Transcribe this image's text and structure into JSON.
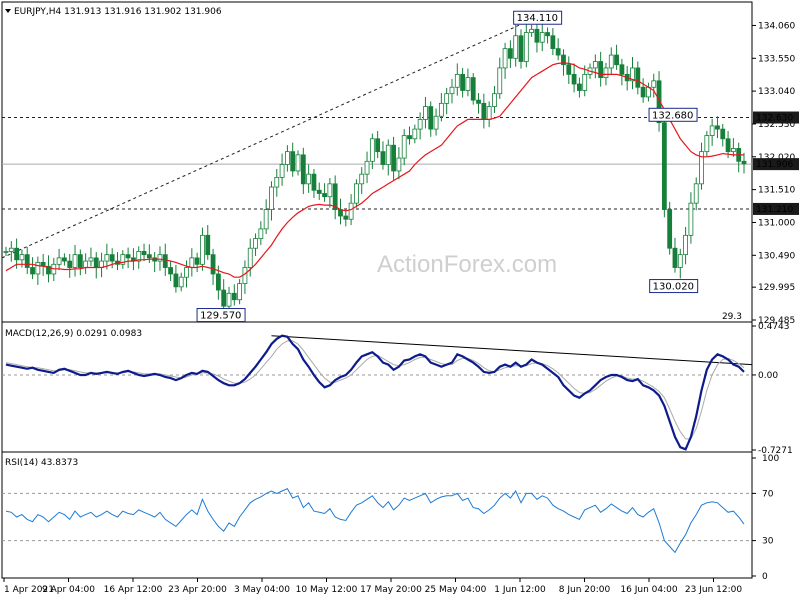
{
  "header": {
    "text": "EURJPY,H4  131.913 131.916 131.902 131.906"
  },
  "watermark": "ActionForex.com",
  "chart_data": [
    {
      "type": "candlestick",
      "title": "EURJPY,H4  131.913 131.916 131.902 131.906",
      "symbol": "EURJPY",
      "timeframe": "H4",
      "ohlc_last": {
        "open": 131.913,
        "high": 131.916,
        "low": 131.902,
        "close": 131.906
      },
      "ylim": [
        129.485,
        134.3
      ],
      "y_ticks": [
        "134.060",
        "133.550",
        "133.040",
        "132.530",
        "132.020",
        "131.510",
        "131.000",
        "130.490",
        "129.995",
        "129.485"
      ],
      "x_ticks": [
        "1 Apr 2021",
        "9 Apr 04:00",
        "16 Apr 12:00",
        "23 Apr 20:00",
        "3 May 04:00",
        "10 May 12:00",
        "17 May 20:00",
        "25 May 04:00",
        "1 Jun 12:00",
        "8 Jun 20:00",
        "16 Jun 04:00",
        "23 Jun 12:00"
      ],
      "close_series": [
        130.55,
        130.6,
        130.42,
        130.5,
        130.3,
        130.2,
        130.38,
        130.32,
        130.2,
        130.35,
        130.45,
        130.4,
        130.3,
        130.5,
        130.3,
        130.4,
        130.45,
        130.3,
        130.4,
        130.5,
        130.4,
        130.35,
        130.5,
        130.45,
        130.4,
        130.55,
        130.5,
        130.45,
        130.4,
        130.5,
        130.3,
        130.2,
        130.0,
        130.15,
        130.3,
        130.45,
        130.35,
        130.8,
        130.5,
        130.2,
        129.95,
        129.7,
        129.9,
        129.8,
        130.05,
        130.3,
        130.6,
        130.75,
        130.9,
        131.2,
        131.55,
        131.7,
        131.9,
        132.1,
        131.8,
        132.05,
        131.6,
        131.75,
        131.5,
        131.45,
        131.4,
        131.6,
        131.2,
        131.1,
        131.05,
        131.3,
        131.6,
        131.75,
        131.95,
        132.3,
        132.1,
        131.9,
        132.2,
        131.8,
        132.0,
        132.35,
        132.3,
        132.45,
        132.6,
        132.8,
        132.45,
        132.65,
        132.85,
        133.0,
        133.1,
        133.3,
        133.05,
        133.25,
        132.9,
        132.85,
        132.6,
        132.8,
        133.0,
        133.4,
        133.7,
        133.55,
        133.9,
        133.5,
        133.95,
        134.0,
        133.8,
        133.95,
        133.9,
        133.7,
        133.6,
        133.45,
        133.3,
        133.15,
        133.05,
        133.3,
        133.4,
        133.5,
        133.25,
        133.4,
        133.6,
        133.45,
        133.3,
        133.2,
        133.4,
        133.1,
        132.95,
        133.1,
        133.2,
        132.55,
        131.2,
        130.6,
        130.3,
        130.5,
        130.8,
        131.3,
        131.6,
        132.1,
        132.35,
        132.5,
        132.45,
        132.3,
        132.1,
        132.15,
        131.95,
        131.91
      ],
      "ma_series": [
        130.25,
        130.3,
        130.35,
        130.35,
        130.35,
        130.35,
        130.33,
        130.32,
        130.3,
        130.28,
        130.28,
        130.27,
        130.27,
        130.28,
        130.28,
        130.3,
        130.3,
        130.3,
        130.3,
        130.32,
        130.35,
        130.37,
        130.38,
        130.4,
        130.4,
        130.42,
        130.42,
        130.43,
        130.43,
        130.43,
        130.42,
        130.4,
        130.38,
        130.35,
        130.32,
        130.3,
        130.3,
        130.32,
        130.3,
        130.28,
        130.25,
        130.22,
        130.2,
        130.15,
        130.15,
        130.2,
        130.27,
        130.35,
        130.45,
        130.55,
        130.65,
        130.78,
        130.9,
        131.0,
        131.08,
        131.15,
        131.2,
        131.25,
        131.27,
        131.28,
        131.27,
        131.27,
        131.25,
        131.2,
        131.18,
        131.2,
        131.25,
        131.3,
        131.37,
        131.45,
        131.5,
        131.55,
        131.6,
        131.65,
        131.7,
        131.75,
        131.8,
        131.9,
        131.98,
        132.05,
        132.1,
        132.15,
        132.2,
        132.3,
        132.4,
        132.5,
        132.55,
        132.6,
        132.6,
        132.6,
        132.6,
        132.6,
        132.62,
        132.65,
        132.75,
        132.85,
        132.95,
        133.05,
        133.15,
        133.25,
        133.3,
        133.35,
        133.4,
        133.45,
        133.47,
        133.48,
        133.47,
        133.45,
        133.4,
        133.38,
        133.35,
        133.33,
        133.3,
        133.3,
        133.3,
        133.3,
        133.28,
        133.25,
        133.22,
        133.2,
        133.15,
        133.1,
        133.05,
        132.9,
        132.75,
        132.6,
        132.45,
        132.3,
        132.2,
        132.1,
        132.05,
        132.02,
        132.02,
        132.03,
        132.05,
        132.07,
        132.06,
        132.05,
        132.05,
        132.05
      ],
      "ma_color": "#e8151a",
      "candle_color": "#16803a",
      "annotations": [
        "134.110",
        "132.680",
        "130.020",
        "129.570"
      ],
      "levels": [
        "132.630",
        "131.906",
        "131.210"
      ],
      "level_colors": [
        "#ffffff",
        "#ffffff",
        "#ffffff"
      ],
      "level_fills": [
        "#1a1a1a",
        "#1a1a1a",
        "#1a1a1a"
      ],
      "side_note": "29.3"
    },
    {
      "type": "line",
      "title": "MACD(12,26,9) 0.0291 0.0983",
      "ylim": [
        -0.7271,
        0.4743
      ],
      "y_ticks": [
        "0.4743",
        "0.00",
        "-0.7271"
      ],
      "macd_color": "#0d1b8c",
      "signal_color": "#aaaaaa",
      "macd_series": [
        0.1,
        0.09,
        0.08,
        0.07,
        0.06,
        0.07,
        0.05,
        0.04,
        0.03,
        0.02,
        0.05,
        0.06,
        0.04,
        0.02,
        0.0,
        0.0,
        0.02,
        0.01,
        0.02,
        0.03,
        0.02,
        0.01,
        0.03,
        0.04,
        0.02,
        0.0,
        -0.01,
        0.0,
        0.01,
        0.0,
        -0.02,
        -0.03,
        -0.05,
        -0.03,
        0.0,
        0.02,
        0.01,
        0.04,
        0.03,
        -0.01,
        -0.05,
        -0.08,
        -0.1,
        -0.1,
        -0.08,
        -0.04,
        0.02,
        0.08,
        0.15,
        0.22,
        0.3,
        0.35,
        0.38,
        0.37,
        0.3,
        0.25,
        0.15,
        0.08,
        0.0,
        -0.07,
        -0.12,
        -0.1,
        -0.05,
        -0.02,
        0.0,
        0.05,
        0.12,
        0.18,
        0.2,
        0.22,
        0.18,
        0.12,
        0.1,
        0.05,
        0.08,
        0.14,
        0.15,
        0.18,
        0.2,
        0.18,
        0.12,
        0.1,
        0.08,
        0.1,
        0.12,
        0.2,
        0.18,
        0.15,
        0.12,
        0.08,
        0.03,
        0.02,
        0.03,
        0.08,
        0.1,
        0.08,
        0.12,
        0.08,
        0.1,
        0.15,
        0.12,
        0.1,
        0.06,
        0.02,
        -0.02,
        -0.1,
        -0.15,
        -0.2,
        -0.22,
        -0.18,
        -0.15,
        -0.1,
        -0.05,
        -0.02,
        0.0,
        0.0,
        -0.02,
        -0.05,
        -0.06,
        -0.04,
        -0.1,
        -0.12,
        -0.15,
        -0.2,
        -0.3,
        -0.45,
        -0.6,
        -0.7,
        -0.72,
        -0.6,
        -0.4,
        -0.15,
        0.05,
        0.15,
        0.2,
        0.18,
        0.15,
        0.1,
        0.08,
        0.03
      ],
      "signal_series": [
        0.12,
        0.11,
        0.1,
        0.09,
        0.08,
        0.07,
        0.07,
        0.06,
        0.05,
        0.04,
        0.04,
        0.05,
        0.05,
        0.04,
        0.03,
        0.02,
        0.02,
        0.02,
        0.02,
        0.02,
        0.02,
        0.02,
        0.02,
        0.03,
        0.03,
        0.02,
        0.01,
        0.01,
        0.01,
        0.01,
        0.0,
        -0.01,
        -0.02,
        -0.03,
        -0.02,
        0.0,
        0.01,
        0.02,
        0.02,
        0.01,
        -0.01,
        -0.04,
        -0.06,
        -0.08,
        -0.08,
        -0.07,
        -0.04,
        0.0,
        0.06,
        0.12,
        0.18,
        0.25,
        0.3,
        0.33,
        0.33,
        0.3,
        0.24,
        0.17,
        0.1,
        0.03,
        -0.03,
        -0.07,
        -0.07,
        -0.05,
        -0.03,
        0.0,
        0.05,
        0.1,
        0.15,
        0.18,
        0.19,
        0.16,
        0.13,
        0.1,
        0.09,
        0.1,
        0.12,
        0.15,
        0.17,
        0.17,
        0.15,
        0.13,
        0.11,
        0.1,
        0.1,
        0.14,
        0.16,
        0.16,
        0.14,
        0.11,
        0.07,
        0.04,
        0.03,
        0.05,
        0.07,
        0.08,
        0.09,
        0.09,
        0.09,
        0.11,
        0.12,
        0.11,
        0.09,
        0.06,
        0.02,
        -0.03,
        -0.08,
        -0.13,
        -0.17,
        -0.18,
        -0.17,
        -0.14,
        -0.1,
        -0.06,
        -0.03,
        -0.01,
        -0.01,
        -0.03,
        -0.04,
        -0.04,
        -0.06,
        -0.09,
        -0.12,
        -0.16,
        -0.22,
        -0.33,
        -0.45,
        -0.55,
        -0.62,
        -0.62,
        -0.52,
        -0.35,
        -0.15,
        0.0,
        0.1,
        0.15,
        0.16,
        0.14,
        0.11,
        0.07
      ],
      "trendline": "resistance"
    },
    {
      "type": "line",
      "title": "RSI(14) 43.8373",
      "ylim": [
        0,
        100
      ],
      "y_ticks": [
        "100",
        "70",
        "30",
        "0"
      ],
      "levels": [
        70,
        30
      ],
      "rsi_color": "#1e7bd6",
      "rsi_series": [
        55,
        54,
        50,
        52,
        48,
        46,
        52,
        50,
        46,
        50,
        54,
        52,
        48,
        55,
        50,
        52,
        54,
        50,
        52,
        55,
        52,
        50,
        55,
        53,
        52,
        56,
        54,
        52,
        50,
        54,
        48,
        45,
        42,
        47,
        52,
        56,
        52,
        65,
        55,
        48,
        42,
        38,
        45,
        42,
        50,
        56,
        62,
        65,
        67,
        70,
        72,
        70,
        72,
        74,
        66,
        68,
        58,
        62,
        55,
        54,
        53,
        57,
        50,
        48,
        47,
        54,
        60,
        62,
        65,
        68,
        62,
        58,
        63,
        56,
        60,
        66,
        64,
        66,
        68,
        70,
        62,
        65,
        67,
        68,
        68,
        70,
        64,
        66,
        58,
        57,
        53,
        56,
        60,
        66,
        70,
        66,
        72,
        62,
        70,
        70,
        65,
        68,
        66,
        60,
        57,
        55,
        52,
        50,
        48,
        56,
        58,
        60,
        54,
        57,
        61,
        58,
        55,
        53,
        58,
        52,
        50,
        54,
        57,
        45,
        30,
        25,
        20,
        28,
        35,
        45,
        52,
        60,
        62,
        63,
        62,
        58,
        54,
        55,
        50,
        44
      ]
    }
  ]
}
